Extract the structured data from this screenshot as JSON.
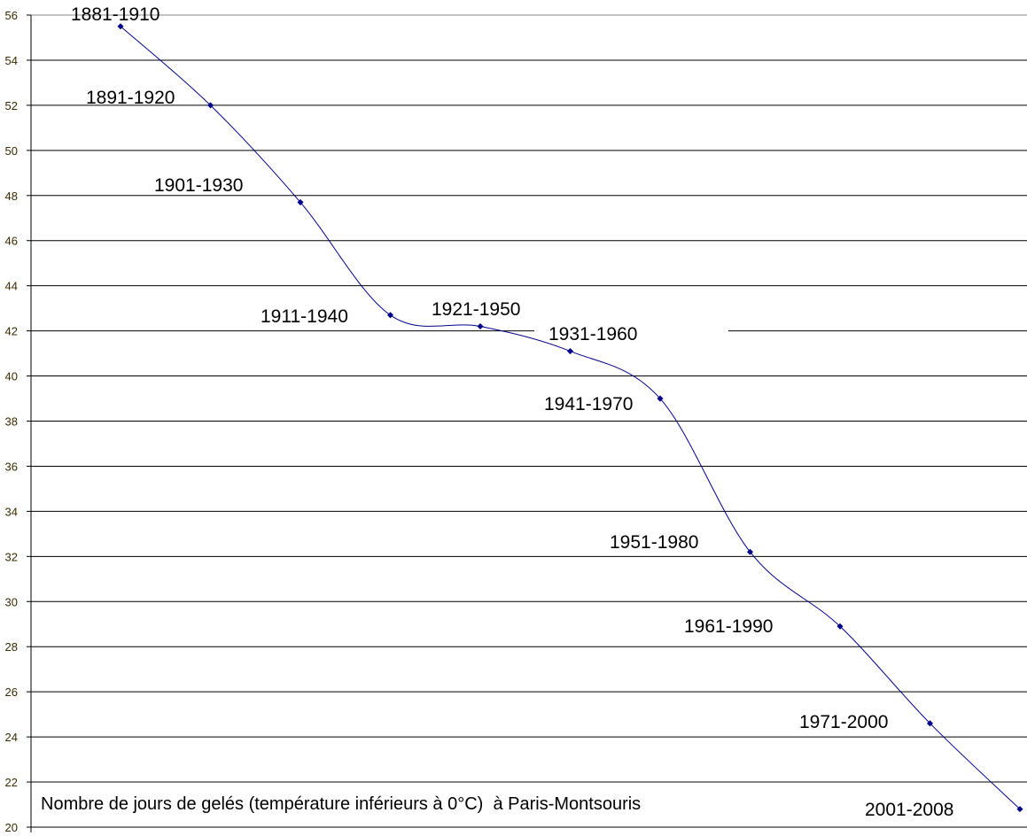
{
  "chart_data": {
    "type": "line",
    "title": "",
    "xlabel": "",
    "ylabel": "",
    "annotation": "Nombre de jours de gelés (température inférieurs à 0°C)  à Paris-Montsouris",
    "categories": [
      "1881-1910",
      "1891-1920",
      "1901-1930",
      "1911-1940",
      "1921-1950",
      "1931-1960",
      "1941-1970",
      "1951-1980",
      "1961-1990",
      "1971-2000",
      "2001-2008"
    ],
    "values": [
      55.5,
      52.0,
      47.7,
      42.7,
      42.2,
      41.1,
      39.0,
      32.2,
      28.9,
      24.6,
      20.8
    ],
    "ylim": [
      20,
      56
    ],
    "yticks": [
      20,
      22,
      24,
      26,
      28,
      30,
      32,
      34,
      36,
      38,
      40,
      42,
      44,
      46,
      48,
      50,
      52,
      54,
      56
    ],
    "grid": true,
    "smooth": true,
    "line_color": "#00008b",
    "legend": "none"
  }
}
